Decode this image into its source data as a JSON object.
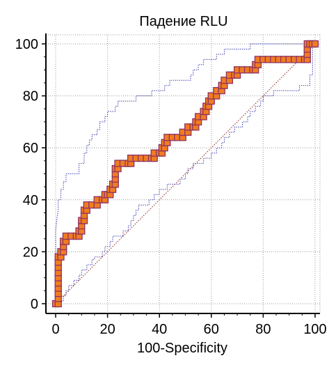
{
  "chart_data": {
    "type": "line",
    "title": "Падение RLU",
    "xlabel": "100-Specificity",
    "ylabel": "",
    "xlim": [
      0,
      100
    ],
    "ylim": [
      0,
      100
    ],
    "x_ticks": [
      0,
      20,
      40,
      60,
      80,
      100
    ],
    "y_ticks": [
      0,
      20,
      40,
      60,
      80,
      100
    ],
    "grid": true,
    "colors": {
      "roc_line": "#8e3163",
      "marker_fill": "#f07c21",
      "marker_border": "#8e3163",
      "confidence_band": "#3b3fb0",
      "diagonal": "#8e1a1a",
      "grid": "#9a9a9a",
      "axis": "#000000"
    },
    "series": [
      {
        "role": "roc-curve",
        "style": "step-with-markers",
        "points": [
          [
            0,
            0
          ],
          [
            1,
            0
          ],
          [
            1,
            2
          ],
          [
            1,
            4
          ],
          [
            1,
            6
          ],
          [
            1,
            8
          ],
          [
            1,
            10
          ],
          [
            1,
            12
          ],
          [
            1,
            14
          ],
          [
            1,
            16
          ],
          [
            1,
            18
          ],
          [
            2,
            18
          ],
          [
            2,
            20
          ],
          [
            3,
            20
          ],
          [
            3,
            22
          ],
          [
            3,
            24
          ],
          [
            4,
            24
          ],
          [
            4,
            26
          ],
          [
            6,
            26
          ],
          [
            8,
            26
          ],
          [
            9,
            26
          ],
          [
            9,
            28
          ],
          [
            10,
            28
          ],
          [
            10,
            30
          ],
          [
            10,
            32
          ],
          [
            11,
            32
          ],
          [
            11,
            34
          ],
          [
            11,
            36
          ],
          [
            12,
            36
          ],
          [
            12,
            38
          ],
          [
            14,
            38
          ],
          [
            16,
            38
          ],
          [
            16,
            40
          ],
          [
            18,
            40
          ],
          [
            19,
            40
          ],
          [
            19,
            42
          ],
          [
            20,
            42
          ],
          [
            21,
            42
          ],
          [
            21,
            44
          ],
          [
            22,
            44
          ],
          [
            22,
            46
          ],
          [
            23,
            46
          ],
          [
            23,
            48
          ],
          [
            23,
            50
          ],
          [
            23,
            52
          ],
          [
            24,
            52
          ],
          [
            24,
            54
          ],
          [
            26,
            54
          ],
          [
            28,
            54
          ],
          [
            29,
            54
          ],
          [
            29,
            56
          ],
          [
            31,
            56
          ],
          [
            33,
            56
          ],
          [
            35,
            56
          ],
          [
            37,
            56
          ],
          [
            38,
            56
          ],
          [
            38,
            58
          ],
          [
            40,
            58
          ],
          [
            41,
            58
          ],
          [
            41,
            60
          ],
          [
            42,
            60
          ],
          [
            42,
            62
          ],
          [
            43,
            62
          ],
          [
            43,
            64
          ],
          [
            45,
            64
          ],
          [
            47,
            64
          ],
          [
            49,
            64
          ],
          [
            49,
            66
          ],
          [
            51,
            66
          ],
          [
            51,
            68
          ],
          [
            53,
            68
          ],
          [
            54,
            68
          ],
          [
            54,
            70
          ],
          [
            55,
            70
          ],
          [
            55,
            72
          ],
          [
            57,
            72
          ],
          [
            57,
            74
          ],
          [
            58,
            74
          ],
          [
            58,
            76
          ],
          [
            59,
            76
          ],
          [
            59,
            78
          ],
          [
            60,
            78
          ],
          [
            60,
            80
          ],
          [
            62,
            80
          ],
          [
            62,
            82
          ],
          [
            64,
            82
          ],
          [
            64,
            84
          ],
          [
            65,
            84
          ],
          [
            65,
            86
          ],
          [
            67,
            86
          ],
          [
            67,
            88
          ],
          [
            69,
            88
          ],
          [
            70,
            88
          ],
          [
            70,
            90
          ],
          [
            72,
            90
          ],
          [
            74,
            90
          ],
          [
            76,
            90
          ],
          [
            77,
            90
          ],
          [
            77,
            92
          ],
          [
            78,
            92
          ],
          [
            78,
            94
          ],
          [
            80,
            94
          ],
          [
            82,
            94
          ],
          [
            84,
            94
          ],
          [
            86,
            94
          ],
          [
            88,
            94
          ],
          [
            90,
            94
          ],
          [
            92,
            94
          ],
          [
            94,
            94
          ],
          [
            96,
            94
          ],
          [
            97,
            94
          ],
          [
            97,
            96
          ],
          [
            97,
            98
          ],
          [
            97,
            100
          ],
          [
            98,
            100
          ],
          [
            99,
            100
          ],
          [
            100,
            100
          ]
        ]
      },
      {
        "role": "confidence-upper",
        "style": "dotted",
        "points": [
          [
            0,
            0
          ],
          [
            0,
            22
          ],
          [
            0,
            28
          ],
          [
            0.5,
            33
          ],
          [
            1,
            36
          ],
          [
            1,
            40
          ],
          [
            2,
            40
          ],
          [
            2,
            44
          ],
          [
            3,
            44
          ],
          [
            3,
            47
          ],
          [
            4,
            47
          ],
          [
            4,
            50
          ],
          [
            9,
            50
          ],
          [
            9,
            54
          ],
          [
            11,
            54
          ],
          [
            11,
            58
          ],
          [
            12,
            58
          ],
          [
            12,
            61
          ],
          [
            13,
            61
          ],
          [
            13,
            63
          ],
          [
            14,
            63
          ],
          [
            14,
            65
          ],
          [
            16,
            65
          ],
          [
            16,
            67
          ],
          [
            17,
            67
          ],
          [
            17,
            70
          ],
          [
            19,
            70
          ],
          [
            19,
            72
          ],
          [
            20,
            72
          ],
          [
            20,
            74
          ],
          [
            23,
            74
          ],
          [
            23,
            76
          ],
          [
            24,
            76
          ],
          [
            24,
            78
          ],
          [
            31,
            78
          ],
          [
            31,
            80
          ],
          [
            37,
            80
          ],
          [
            37,
            82
          ],
          [
            42,
            82
          ],
          [
            42,
            84
          ],
          [
            44,
            84
          ],
          [
            44,
            86
          ],
          [
            52,
            86
          ],
          [
            52,
            88
          ],
          [
            53,
            88
          ],
          [
            53,
            90
          ],
          [
            55,
            90
          ],
          [
            55,
            92
          ],
          [
            57,
            92
          ],
          [
            57,
            94
          ],
          [
            62,
            94
          ],
          [
            62,
            96
          ],
          [
            65,
            96
          ],
          [
            65,
            98
          ],
          [
            75,
            98
          ],
          [
            75,
            100
          ],
          [
            80,
            100
          ],
          [
            100,
            100
          ]
        ]
      },
      {
        "role": "confidence-lower",
        "style": "dotted",
        "points": [
          [
            0,
            0
          ],
          [
            2,
            0
          ],
          [
            2,
            1
          ],
          [
            3,
            1
          ],
          [
            3,
            3
          ],
          [
            4,
            3
          ],
          [
            4,
            5
          ],
          [
            5,
            5
          ],
          [
            5,
            7
          ],
          [
            7,
            7
          ],
          [
            7,
            9
          ],
          [
            9,
            9
          ],
          [
            9,
            11
          ],
          [
            10,
            11
          ],
          [
            10,
            13
          ],
          [
            12,
            13
          ],
          [
            12,
            15
          ],
          [
            14,
            15
          ],
          [
            14,
            17
          ],
          [
            15,
            17
          ],
          [
            15,
            18
          ],
          [
            18,
            18
          ],
          [
            18,
            20
          ],
          [
            19,
            20
          ],
          [
            19,
            22
          ],
          [
            21,
            22
          ],
          [
            21,
            24
          ],
          [
            22,
            24
          ],
          [
            22,
            26
          ],
          [
            26,
            26
          ],
          [
            26,
            28
          ],
          [
            28,
            28
          ],
          [
            28,
            30
          ],
          [
            29,
            30
          ],
          [
            29,
            32
          ],
          [
            30,
            32
          ],
          [
            30,
            34
          ],
          [
            31,
            34
          ],
          [
            31,
            36
          ],
          [
            32,
            36
          ],
          [
            32,
            38
          ],
          [
            36,
            38
          ],
          [
            36,
            40
          ],
          [
            38,
            40
          ],
          [
            38,
            42
          ],
          [
            40,
            42
          ],
          [
            40,
            44
          ],
          [
            43,
            44
          ],
          [
            43,
            46
          ],
          [
            48,
            46
          ],
          [
            48,
            48
          ],
          [
            50,
            48
          ],
          [
            50,
            50
          ],
          [
            51,
            50
          ],
          [
            51,
            52
          ],
          [
            53,
            52
          ],
          [
            53,
            54
          ],
          [
            57,
            54
          ],
          [
            57,
            56
          ],
          [
            60,
            56
          ],
          [
            60,
            58
          ],
          [
            62,
            58
          ],
          [
            62,
            60
          ],
          [
            64,
            60
          ],
          [
            64,
            62
          ],
          [
            65,
            62
          ],
          [
            65,
            64
          ],
          [
            67,
            64
          ],
          [
            67,
            66
          ],
          [
            69,
            66
          ],
          [
            69,
            68
          ],
          [
            72,
            68
          ],
          [
            72,
            70
          ],
          [
            74,
            70
          ],
          [
            74,
            72
          ],
          [
            75,
            72
          ],
          [
            75,
            74
          ],
          [
            77,
            74
          ],
          [
            77,
            76
          ],
          [
            79,
            76
          ],
          [
            79,
            78
          ],
          [
            80,
            78
          ],
          [
            80,
            80
          ],
          [
            84,
            80
          ],
          [
            84,
            82
          ],
          [
            94,
            82
          ],
          [
            94,
            84
          ],
          [
            98,
            84
          ],
          [
            98,
            88
          ],
          [
            99,
            88
          ],
          [
            99,
            100
          ],
          [
            100,
            100
          ]
        ]
      },
      {
        "role": "reference-diagonal",
        "style": "dotted",
        "points": [
          [
            0,
            0
          ],
          [
            100,
            100
          ]
        ]
      }
    ]
  }
}
